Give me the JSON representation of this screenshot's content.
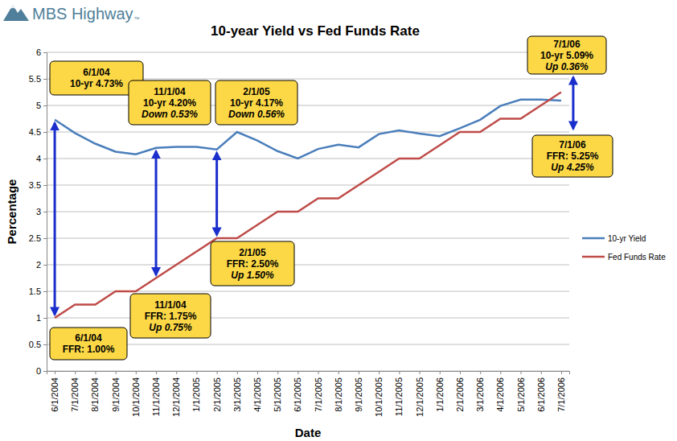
{
  "chart_data": {
    "type": "line",
    "title": "10-year Yield vs Fed Funds Rate",
    "logo": "MBS Highway",
    "logo_mark": "™",
    "x_label": "Date",
    "y_label": "Percentage",
    "categories": [
      "6/1/2004",
      "7/1/2004",
      "8/1/2004",
      "9/1/2004",
      "10/1/2004",
      "11/1/2004",
      "12/1/2004",
      "1/1/2005",
      "2/1/2005",
      "3/1/2005",
      "4/1/2005",
      "5/1/2005",
      "6/1/2005",
      "7/1/2005",
      "8/1/2005",
      "9/1/2005",
      "10/1/2005",
      "11/1/2005",
      "12/1/2005",
      "1/1/2006",
      "2/1/2006",
      "3/1/2006",
      "4/1/2006",
      "5/1/2006",
      "6/1/2006",
      "7/1/2006"
    ],
    "series": [
      {
        "name": "10-yr Yield",
        "color": "#4a7ebb",
        "values": [
          4.73,
          4.48,
          4.28,
          4.13,
          4.08,
          4.2,
          4.22,
          4.22,
          4.17,
          4.5,
          4.34,
          4.14,
          4.0,
          4.18,
          4.26,
          4.21,
          4.46,
          4.53,
          4.47,
          4.42,
          4.57,
          4.73,
          4.99,
          5.11,
          5.11,
          5.09
        ]
      },
      {
        "name": "Fed Funds Rate",
        "color": "#be4b48",
        "values": [
          1.0,
          1.25,
          1.25,
          1.5,
          1.5,
          1.75,
          2.0,
          2.25,
          2.5,
          2.5,
          2.75,
          3.0,
          3.0,
          3.25,
          3.25,
          3.5,
          3.75,
          4.0,
          4.0,
          4.25,
          4.5,
          4.5,
          4.75,
          4.75,
          5.0,
          5.25
        ]
      }
    ],
    "ylim": [
      0,
      6
    ],
    "yticks": [
      0,
      0.5,
      1,
      1.5,
      2,
      2.5,
      3,
      3.5,
      4,
      4.5,
      5,
      5.5,
      6
    ],
    "grid": true,
    "legend": "right",
    "annotations": [
      {
        "lines": [
          "6/1/04",
          "10-yr 4.73%"
        ]
      },
      {
        "lines": [
          "11/1/04",
          "10-yr 4.20%",
          "Down 0.53%"
        ]
      },
      {
        "lines": [
          "2/1/05",
          "10-yr 4.17%",
          "Down 0.56%"
        ]
      },
      {
        "lines": [
          "7/1/06",
          "10-yr 5.09%",
          "Up 0.36%"
        ]
      },
      {
        "lines": [
          "6/1/04",
          "FFR: 1.00%"
        ]
      },
      {
        "lines": [
          "11/1/04",
          "FFR: 1.75%",
          "Up 0.75%"
        ]
      },
      {
        "lines": [
          "2/1/05",
          "FFR: 2.50%",
          "Up 1.50%"
        ]
      },
      {
        "lines": [
          "7/1/06",
          "FFR: 5.25%",
          "Up 4.25%"
        ]
      }
    ]
  }
}
